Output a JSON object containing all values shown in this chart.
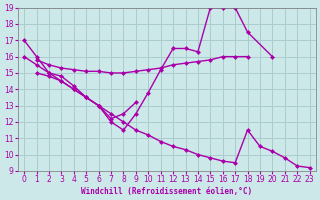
{
  "background_color": "#cce8e8",
  "grid_color": "#aacccc",
  "line_color": "#aa00aa",
  "xlabel": "Windchill (Refroidissement éolien,°C)",
  "xlim": [
    -0.5,
    23.5
  ],
  "ylim": [
    9,
    19
  ],
  "yticks": [
    9,
    10,
    11,
    12,
    13,
    14,
    15,
    16,
    17,
    18,
    19
  ],
  "xticks": [
    0,
    1,
    2,
    3,
    4,
    5,
    6,
    7,
    8,
    9,
    10,
    11,
    12,
    13,
    14,
    15,
    16,
    17,
    18,
    19,
    20,
    21,
    22,
    23
  ],
  "series": [
    {
      "x": [
        0,
        1,
        2,
        3,
        4,
        5,
        6,
        7,
        8,
        9,
        10,
        11,
        12,
        13,
        14,
        15,
        16,
        17,
        18,
        20
      ],
      "y": [
        17,
        16,
        15,
        14.8,
        14.2,
        13.5,
        13,
        12,
        11.5,
        12.5,
        13.8,
        15.2,
        16.5,
        16.5,
        16.3,
        19,
        19,
        19,
        17.5,
        16
      ]
    },
    {
      "x": [
        1,
        2,
        3,
        4,
        5,
        6,
        7,
        8,
        9,
        10,
        11,
        12,
        13,
        14,
        15,
        16,
        17,
        18
      ],
      "y": [
        15.8,
        15.5,
        15.3,
        15.2,
        15.1,
        15.1,
        15.0,
        15.0,
        15.1,
        15.2,
        15.3,
        15.5,
        15.6,
        15.7,
        15.8,
        16.0,
        16.0,
        16.0
      ]
    },
    {
      "x": [
        1,
        2,
        3,
        4,
        5,
        6,
        7,
        8,
        9
      ],
      "y": [
        15.0,
        14.8,
        14.5,
        14.0,
        13.5,
        13.0,
        12.2,
        12.5,
        13.2
      ]
    },
    {
      "x": [
        0,
        1,
        2,
        3,
        4,
        5,
        6,
        7,
        8,
        9,
        10,
        11,
        12,
        13,
        14,
        15,
        16,
        17,
        18,
        19,
        20,
        21,
        22,
        23
      ],
      "y": [
        16,
        15.5,
        15.0,
        14.5,
        14.0,
        13.5,
        13.0,
        12.5,
        12.0,
        11.5,
        11.2,
        10.8,
        10.5,
        10.3,
        10.0,
        9.8,
        9.6,
        9.5,
        11.5,
        10.5,
        10.2,
        9.8,
        9.3,
        9.2
      ]
    }
  ]
}
